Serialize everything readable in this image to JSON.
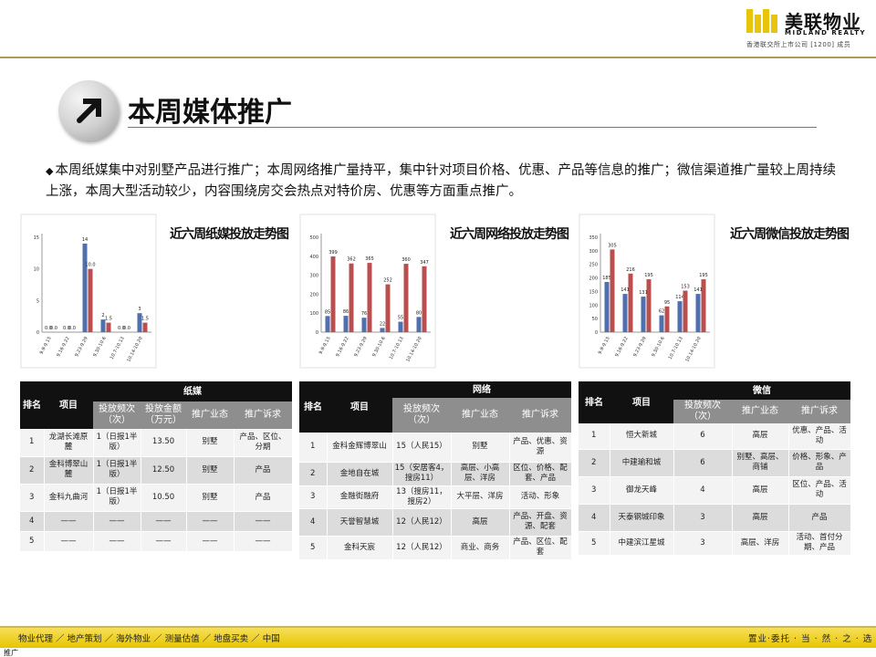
{
  "header": {
    "logo_cn": "美联物业",
    "logo_en": "MIDLAND REALTY",
    "logo_sub": "香港联交所上市公司 [1200] 成员"
  },
  "title": "本周媒体推广",
  "description": "本周纸媒集中对别墅产品进行推广；本周网络推广量持平，集中针对项目价格、优惠、产品等信息的推广；微信渠道推广量较上周持续上涨，本周大型活动较少，内容围绕房交会热点对特价房、优惠等方面重点推广。",
  "chart_data": [
    {
      "type": "bar",
      "title": "近六周纸媒投放走势图",
      "categories": [
        "9.9-9.15",
        "9.16-9.22",
        "9.23-9.29",
        "9.30-10.6",
        "10.7-10.13",
        "10.14-10.20"
      ],
      "series": [
        {
          "values": [
            0.0,
            0.0,
            14,
            2,
            0.0,
            3
          ],
          "labels": [
            "0.0",
            "0.0",
            "14",
            "2",
            "0.0",
            "3"
          ],
          "color": "#4f6fae"
        },
        {
          "values": [
            0.0,
            0.0,
            10.0,
            1.5,
            0.0,
            1.5
          ],
          "labels": [
            "0.0",
            "0.0",
            "10.0",
            "1.5",
            "0.0",
            "1.5"
          ],
          "color": "#b9504f"
        }
      ],
      "ylim": [
        0,
        15
      ],
      "yticks": [
        "0",
        "5",
        "10",
        "15"
      ],
      "grid": false
    },
    {
      "type": "bar",
      "title": "近六周网络投放走势图",
      "categories": [
        "9.9-9.15",
        "9.16-9.22",
        "9.23-9.29",
        "9.30-10.6",
        "10.7-10.13",
        "10.14-10.20"
      ],
      "series": [
        {
          "values": [
            85,
            86,
            76,
            22,
            55,
            80
          ],
          "labels": [
            "85",
            "86",
            "76",
            "22",
            "55",
            "80"
          ],
          "color": "#4f6fae"
        },
        {
          "values": [
            399,
            362,
            365,
            252,
            360,
            347
          ],
          "labels": [
            "399",
            "362",
            "365",
            "252",
            "360",
            "347"
          ],
          "color": "#b9504f"
        }
      ],
      "ylim": [
        0,
        500
      ],
      "yticks": [
        "0",
        "100",
        "200",
        "300",
        "400",
        "500"
      ],
      "grid": false
    },
    {
      "type": "bar",
      "title": "近六周微信投放走势图",
      "categories": [
        "9.9-9.15",
        "9.16-9.22",
        "9.23-9.29",
        "9.30-10.6",
        "10.7-10.13",
        "10.14-10.20"
      ],
      "series": [
        {
          "values": [
            185,
            141,
            131,
            62,
            114,
            141
          ],
          "labels": [
            "185",
            "141",
            "131",
            "62",
            "114",
            "141"
          ],
          "color": "#4f6fae"
        },
        {
          "values": [
            305,
            216,
            195,
            95,
            153,
            195
          ],
          "labels": [
            "305",
            "216",
            "195",
            "95",
            "153",
            "195"
          ],
          "color": "#b9504f"
        }
      ],
      "ylim": [
        0,
        350
      ],
      "yticks": [
        "0",
        "50",
        "100",
        "150",
        "200",
        "250",
        "300",
        "350"
      ],
      "grid": false
    }
  ],
  "tables": {
    "print": {
      "group": "纸媒",
      "h_rank": "排名",
      "h_project": "项目",
      "cols": [
        "投放频次（次）",
        "投放金额（万元）",
        "推广业态",
        "推广诉求"
      ],
      "rows": [
        [
          "1",
          "龙湖长滩原麓",
          "1（日报1半版）",
          "13.50",
          "别墅",
          "产品、区位、分期"
        ],
        [
          "2",
          "金科博翠山麓",
          "1（日报1半版）",
          "12.50",
          "别墅",
          "产品"
        ],
        [
          "3",
          "金科九曲河",
          "1（日报1半版）",
          "10.50",
          "别墅",
          "产品"
        ],
        [
          "4",
          "——",
          "——",
          "——",
          "——",
          "——"
        ],
        [
          "5",
          "——",
          "——",
          "——",
          "——",
          "——"
        ]
      ]
    },
    "web": {
      "group": "网络",
      "h_rank": "排名",
      "h_project": "项目",
      "cols": [
        "投放频次（次）",
        "推广业态",
        "推广诉求"
      ],
      "rows": [
        [
          "1",
          "金科金辉博翠山",
          "15（人民15）",
          "别墅",
          "产品、优惠、资源"
        ],
        [
          "2",
          "金地自在城",
          "15（安居客4，搜房11）",
          "高层、小高层、洋房",
          "区位、价格、配套、产品"
        ],
        [
          "3",
          "金融街融府",
          "13（搜房11，搜房2）",
          "大平层、洋房",
          "活动、形象"
        ],
        [
          "4",
          "天誉智慧城",
          "12（人民12）",
          "高层",
          "产品、开盘、资源、配套"
        ],
        [
          "5",
          "金科天宸",
          "12（人民12）",
          "商业、商务",
          "产品、区位、配套"
        ]
      ]
    },
    "wechat": {
      "group": "微信",
      "h_rank": "排名",
      "h_project": "项目",
      "cols": [
        "投放频次（次）",
        "推广业态",
        "推广诉求"
      ],
      "rows": [
        [
          "1",
          "恒大新城",
          "6",
          "高层",
          "优惠、产品、活动"
        ],
        [
          "2",
          "中建瑜和城",
          "6",
          "别墅、高层、商铺",
          "价格、形象、产品"
        ],
        [
          "3",
          "御龙天峰",
          "4",
          "高层",
          "区位、产品、活动"
        ],
        [
          "4",
          "天泰钢城印象",
          "3",
          "高层",
          "产品"
        ],
        [
          "5",
          "中建滨江星城",
          "3",
          "高层、洋房",
          "活动、首付分期、产品"
        ]
      ]
    }
  },
  "footer": {
    "left": "物业代理 ／ 地产策划 ／ 海外物业 ／ 测量估值 ／ 地盘买卖 ／ 中国",
    "right": "置业·委托 · 当 · 然 · 之 · 选",
    "corner": "推广"
  }
}
